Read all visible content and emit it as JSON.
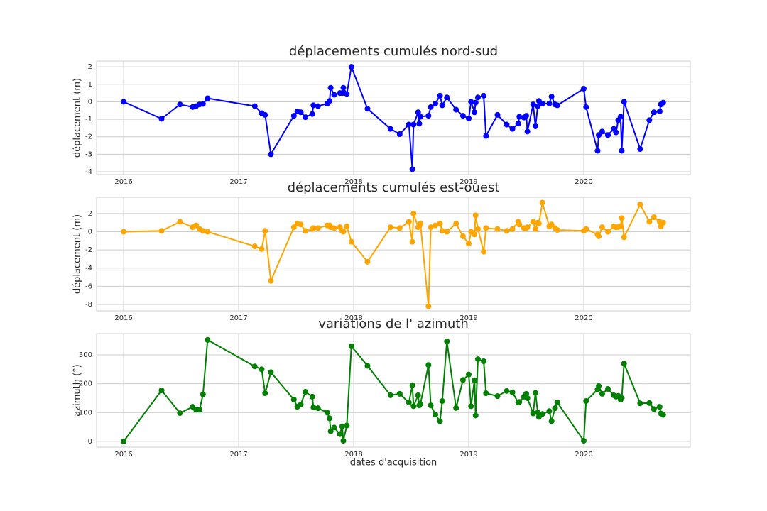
{
  "chart_data": [
    {
      "type": "line",
      "title": "déplacements cumulés nord-sud",
      "ylabel": "déplacement (m)",
      "color": "#0000ff",
      "grid": true,
      "xlim": [
        2015.765,
        2020.926
      ],
      "xticks": [
        2016,
        2017,
        2018,
        2019,
        2020
      ],
      "ylim": [
        -4.16,
        2.33
      ],
      "yticks": [
        -4,
        -3,
        -2,
        -1,
        0,
        1,
        2
      ],
      "x": [
        2016,
        2016.33,
        2016.49,
        2016.6,
        2016.63,
        2016.66,
        2016.69,
        2016.73,
        2017.14,
        2017.2,
        2017.23,
        2017.28,
        2017.48,
        2017.51,
        2017.54,
        2017.58,
        2017.64,
        2017.65,
        2017.69,
        2017.77,
        2017.79,
        2017.8,
        2017.83,
        2017.88,
        2017.9,
        2017.91,
        2017.94,
        2017.98,
        2018.12,
        2018.32,
        2018.4,
        2018.48,
        2018.51,
        2018.52,
        2018.56,
        2018.57,
        2018.58,
        2018.65,
        2018.67,
        2018.71,
        2018.75,
        2018.77,
        2018.81,
        2018.89,
        2018.95,
        2019.0,
        2019.02,
        2019.05,
        2019.06,
        2019.08,
        2019.13,
        2019.15,
        2019.25,
        2019.33,
        2019.38,
        2019.43,
        2019.44,
        2019.48,
        2019.5,
        2019.51,
        2019.56,
        2019.58,
        2019.6,
        2019.61,
        2019.64,
        2019.7,
        2019.72,
        2019.75,
        2019.77,
        2020.0,
        2020.02,
        2020.12,
        2020.13,
        2020.16,
        2020.21,
        2020.26,
        2020.28,
        2020.3,
        2020.32,
        2020.33,
        2020.35,
        2020.49,
        2020.57,
        2020.61,
        2020.66,
        2020.67,
        2020.69
      ],
      "values": [
        0,
        -0.97,
        -0.15,
        -0.3,
        -0.25,
        -0.15,
        -0.12,
        0.2,
        -0.25,
        -0.65,
        -0.75,
        -3.0,
        -0.8,
        -0.55,
        -0.6,
        -0.88,
        -0.7,
        -0.2,
        -0.25,
        -0.1,
        0.05,
        0.8,
        0.4,
        0.5,
        0.5,
        0.8,
        0.45,
        2.0,
        -0.4,
        -1.55,
        -1.85,
        -1.3,
        -3.85,
        -1.3,
        -0.6,
        -1.25,
        -0.85,
        -0.8,
        -0.3,
        -0.1,
        0.35,
        -0.2,
        0.25,
        -0.45,
        -0.8,
        -0.95,
        0.0,
        -0.6,
        -0.05,
        0.25,
        0.35,
        -1.95,
        -0.75,
        -1.3,
        -1.55,
        -1.25,
        -0.85,
        -0.9,
        -0.8,
        -1.7,
        -0.15,
        -1.4,
        -0.25,
        0.05,
        -0.1,
        -0.1,
        0.3,
        -0.15,
        -0.2,
        0.75,
        -0.3,
        -2.8,
        -1.9,
        -1.7,
        -1.9,
        -1.55,
        -1.75,
        -1.05,
        -0.85,
        -2.8,
        0.0,
        -2.7,
        -1.05,
        -0.6,
        -0.55,
        -0.15,
        -0.05
      ]
    },
    {
      "type": "line",
      "title": "déplacements cumulés est-ouest",
      "ylabel": "déplacement (m)",
      "color": "#ffa500",
      "grid": true,
      "xlim": [
        2015.765,
        2020.926
      ],
      "xticks": [
        2016,
        2017,
        2018,
        2019,
        2020
      ],
      "ylim": [
        -8.7,
        3.79
      ],
      "yticks": [
        -8,
        -6,
        -4,
        -2,
        0,
        2
      ],
      "x": [
        2016,
        2016.33,
        2016.49,
        2016.6,
        2016.63,
        2016.66,
        2016.69,
        2016.73,
        2017.14,
        2017.2,
        2017.23,
        2017.28,
        2017.48,
        2017.51,
        2017.54,
        2017.58,
        2017.64,
        2017.65,
        2017.69,
        2017.77,
        2017.79,
        2017.8,
        2017.83,
        2017.88,
        2017.9,
        2017.91,
        2017.94,
        2017.98,
        2018.12,
        2018.32,
        2018.4,
        2018.48,
        2018.51,
        2018.52,
        2018.56,
        2018.57,
        2018.58,
        2018.65,
        2018.67,
        2018.71,
        2018.75,
        2018.77,
        2018.81,
        2018.89,
        2018.95,
        2019.0,
        2019.02,
        2019.05,
        2019.06,
        2019.08,
        2019.13,
        2019.15,
        2019.25,
        2019.33,
        2019.38,
        2019.43,
        2019.44,
        2019.48,
        2019.5,
        2019.51,
        2019.56,
        2019.58,
        2019.6,
        2019.61,
        2019.64,
        2019.7,
        2019.72,
        2019.75,
        2019.77,
        2020.0,
        2020.02,
        2020.12,
        2020.13,
        2020.16,
        2020.21,
        2020.26,
        2020.28,
        2020.3,
        2020.32,
        2020.33,
        2020.35,
        2020.49,
        2020.57,
        2020.61,
        2020.66,
        2020.67,
        2020.69
      ],
      "values": [
        0,
        0.1,
        1.1,
        0.5,
        0.7,
        0.3,
        0.1,
        0.0,
        -1.6,
        -1.9,
        0.1,
        -5.4,
        0.5,
        0.9,
        0.8,
        0.1,
        0.3,
        0.4,
        0.4,
        0.7,
        0.7,
        0.5,
        0.4,
        0.5,
        0.1,
        0.0,
        0.6,
        -1.1,
        -3.3,
        0.5,
        0.4,
        1.1,
        -1.1,
        2.0,
        0.5,
        0.6,
        0.9,
        -8.2,
        0.5,
        0.7,
        0.9,
        0.1,
        0.0,
        0.9,
        -0.5,
        -1.3,
        0.0,
        -0.3,
        1.8,
        0.3,
        -2.2,
        0.4,
        0.3,
        0.1,
        0.3,
        1.1,
        0.8,
        0.4,
        0.4,
        0.5,
        1.1,
        0.3,
        1.0,
        0.9,
        3.2,
        0.6,
        0.8,
        0.4,
        0.2,
        0.1,
        0.3,
        -0.3,
        -0.5,
        0.5,
        0.0,
        0.6,
        0.5,
        0.5,
        0.6,
        1.5,
        -0.6,
        3.0,
        1.1,
        1.6,
        1.1,
        0.6,
        1.0
      ]
    },
    {
      "type": "line",
      "title": "variations de l' azimuth",
      "ylabel": "azimuth (°)",
      "xlabel": "dates d'acquisition",
      "color": "#008000",
      "grid": true,
      "xlim": [
        2015.765,
        2020.926
      ],
      "xticks": [
        2016,
        2017,
        2018,
        2019,
        2020
      ],
      "ylim": [
        -20,
        374
      ],
      "yticks": [
        0,
        100,
        200,
        300
      ],
      "x": [
        2016,
        2016.33,
        2016.49,
        2016.6,
        2016.63,
        2016.66,
        2016.69,
        2016.73,
        2017.14,
        2017.2,
        2017.23,
        2017.28,
        2017.48,
        2017.51,
        2017.54,
        2017.58,
        2017.64,
        2017.65,
        2017.69,
        2017.77,
        2017.79,
        2017.8,
        2017.83,
        2017.88,
        2017.9,
        2017.91,
        2017.94,
        2017.98,
        2018.12,
        2018.32,
        2018.4,
        2018.48,
        2018.51,
        2018.52,
        2018.56,
        2018.57,
        2018.58,
        2018.65,
        2018.67,
        2018.71,
        2018.75,
        2018.77,
        2018.81,
        2018.89,
        2018.95,
        2019.0,
        2019.02,
        2019.05,
        2019.06,
        2019.08,
        2019.13,
        2019.15,
        2019.25,
        2019.33,
        2019.38,
        2019.43,
        2019.44,
        2019.48,
        2019.5,
        2019.51,
        2019.56,
        2019.58,
        2019.6,
        2019.61,
        2019.64,
        2019.7,
        2019.72,
        2019.75,
        2019.77,
        2020.0,
        2020.02,
        2020.12,
        2020.13,
        2020.16,
        2020.21,
        2020.26,
        2020.28,
        2020.3,
        2020.32,
        2020.33,
        2020.35,
        2020.49,
        2020.57,
        2020.61,
        2020.66,
        2020.67,
        2020.69
      ],
      "values": [
        0,
        177,
        98,
        120,
        110,
        110,
        163,
        352,
        260,
        250,
        167,
        240,
        145,
        120,
        128,
        172,
        155,
        118,
        115,
        100,
        80,
        35,
        48,
        25,
        52,
        2,
        55,
        330,
        262,
        160,
        165,
        135,
        195,
        122,
        160,
        125,
        130,
        265,
        125,
        93,
        70,
        140,
        347,
        116,
        213,
        232,
        122,
        212,
        90,
        285,
        278,
        167,
        157,
        175,
        170,
        135,
        137,
        155,
        165,
        150,
        97,
        168,
        100,
        85,
        95,
        105,
        70,
        115,
        135,
        2,
        140,
        180,
        192,
        165,
        182,
        160,
        155,
        158,
        145,
        150,
        270,
        132,
        133,
        112,
        120,
        97,
        92
      ]
    }
  ]
}
